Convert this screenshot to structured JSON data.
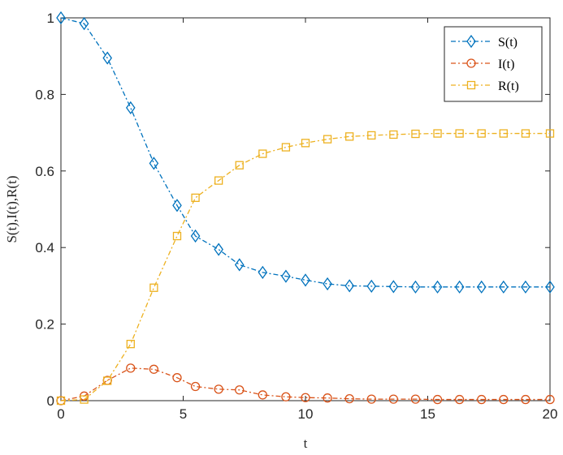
{
  "chart_data": {
    "type": "line",
    "xlabel": "t",
    "ylabel": "S(t),I(t),R(t)",
    "xlim": [
      0,
      20
    ],
    "ylim": [
      0,
      1
    ],
    "xticks": [
      "0",
      "5",
      "10",
      "15",
      "20"
    ],
    "yticks": [
      "0",
      "0.2",
      "0.4",
      "0.6",
      "0.8",
      "1"
    ],
    "grid": false,
    "legend_position": "top-right",
    "x": [
      0,
      0.95,
      1.9,
      2.85,
      3.8,
      4.75,
      5.5,
      6.45,
      7.3,
      8.25,
      9.2,
      10.0,
      10.9,
      11.8,
      12.7,
      13.6,
      14.5,
      15.4,
      16.3,
      17.2,
      18.1,
      19.0,
      20.0
    ],
    "series": [
      {
        "name": "S(t)",
        "color": "#0072BD",
        "marker": "diamond",
        "values": [
          1.0,
          0.985,
          0.895,
          0.765,
          0.62,
          0.51,
          0.43,
          0.395,
          0.355,
          0.335,
          0.325,
          0.315,
          0.305,
          0.3,
          0.299,
          0.298,
          0.297,
          0.297,
          0.297,
          0.297,
          0.297,
          0.297,
          0.297
        ]
      },
      {
        "name": "I(t)",
        "color": "#D95319",
        "marker": "circle",
        "values": [
          0.0,
          0.012,
          0.053,
          0.085,
          0.082,
          0.06,
          0.037,
          0.03,
          0.028,
          0.015,
          0.01,
          0.008,
          0.007,
          0.005,
          0.004,
          0.004,
          0.004,
          0.003,
          0.003,
          0.003,
          0.003,
          0.003,
          0.003
        ]
      },
      {
        "name": "R(t)",
        "color": "#EDB120",
        "marker": "square",
        "values": [
          0.0,
          0.003,
          0.052,
          0.148,
          0.295,
          0.43,
          0.53,
          0.575,
          0.615,
          0.645,
          0.662,
          0.673,
          0.683,
          0.69,
          0.693,
          0.695,
          0.697,
          0.698,
          0.698,
          0.698,
          0.698,
          0.698,
          0.698
        ]
      }
    ]
  }
}
